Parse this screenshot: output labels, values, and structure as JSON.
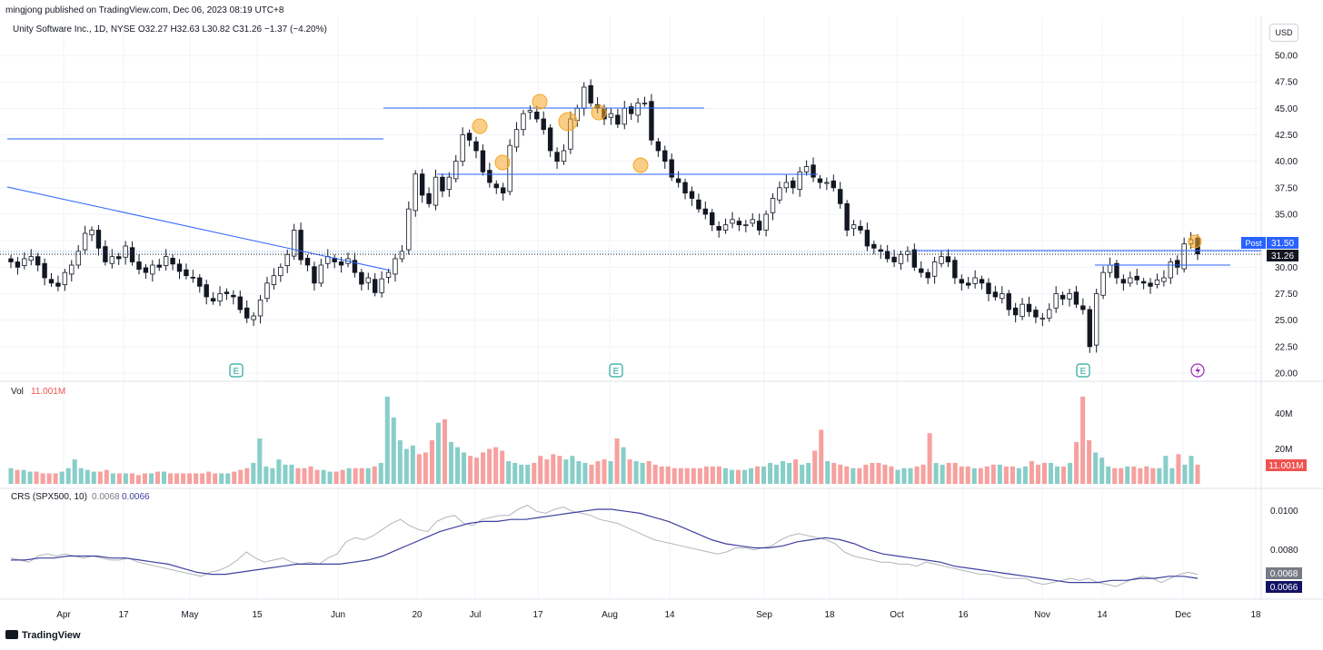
{
  "header": {
    "publisher_line": "mingjong published on TradingView.com, Dec 06, 2023 08:19 UTC+8",
    "symbol_line": "Unity Software Inc., 1D, NYSE",
    "ohlc": {
      "o": "O32.27",
      "h": "H32.63",
      "l": "L30.82",
      "c": "C31.26",
      "chg": "−1.37 (−4.20%)"
    },
    "currency_button": "USD"
  },
  "footer": {
    "brand": "TradingView"
  },
  "colors": {
    "up": "#26a69a",
    "down": "#ef5350",
    "line": "#2962ff",
    "crs": "#3f3f9e",
    "crs_raw": "#b2b5be",
    "highlight": "#f5a623"
  },
  "chart_data": [
    {
      "type": "candlestick",
      "panel": "price",
      "x_tick_labels": [
        "Apr",
        "17",
        "May",
        "15",
        "Jun",
        "20",
        "Jul",
        "17",
        "Aug",
        "14",
        "Sep",
        "18",
        "Oct",
        "16",
        "Nov",
        "14",
        "Dec",
        "18"
      ],
      "y_tick_labels": [
        "50.00",
        "47.50",
        "45.00",
        "42.50",
        "40.00",
        "37.50",
        "35.00",
        "32.50",
        "30.00",
        "27.50",
        "25.00",
        "22.50",
        "20.00"
      ],
      "ylim": [
        20,
        52
      ],
      "last_close": 31.26,
      "post_label": "Post",
      "post_value": "31.50",
      "last_value_label": "31.26",
      "earnings_markers": [
        "E",
        "E",
        "E"
      ],
      "closes": [
        30.5,
        30.0,
        30.8,
        31.0,
        30.2,
        29.0,
        28.5,
        28.2,
        29.5,
        30.2,
        31.5,
        33.2,
        33.5,
        31.8,
        30.5,
        31.0,
        30.8,
        32.0,
        30.5,
        29.8,
        29.5,
        30.2,
        30.0,
        31.0,
        30.3,
        29.6,
        29.2,
        29.0,
        28.2,
        27.2,
        26.8,
        27.5,
        27.5,
        27.2,
        26.0,
        25.2,
        25.4,
        26.9,
        28.5,
        29.2,
        30.0,
        31.2,
        33.5,
        30.7,
        30.2,
        28.5,
        30.2,
        31.0,
        30.5,
        30.2,
        30.8,
        29.5,
        28.4,
        29.0,
        27.6,
        28.9,
        29.5,
        30.8,
        31.5,
        35.5,
        38.8,
        36.8,
        36.0,
        38.5,
        37.2,
        38.5,
        40.0,
        42.5,
        42.0,
        41.0,
        39.0,
        38.0,
        37.5,
        37.0,
        41.5,
        43.0,
        44.5,
        44.8,
        44.0,
        43.0,
        41.0,
        40.0,
        41.0,
        44.0,
        45.0,
        47.0,
        45.5,
        45.0,
        44.0,
        44.5,
        43.5,
        45.0,
        44.5,
        45.5,
        45.5,
        42.0,
        41.0,
        40.0,
        38.5,
        38.0,
        37.0,
        36.5,
        35.5,
        35.0,
        34.0,
        33.5,
        34.0,
        34.5,
        34.0,
        34.0,
        34.5,
        33.5,
        35.0,
        36.5,
        37.5,
        38.0,
        37.5,
        39.0,
        39.5,
        38.5,
        38.0,
        38.0,
        37.5,
        36.0,
        33.5,
        34.0,
        33.5,
        32.0,
        31.8,
        31.5,
        30.8,
        30.5,
        31.2,
        31.5,
        30.0,
        29.5,
        29.0,
        30.5,
        31.0,
        30.5,
        29.0,
        28.5,
        28.3,
        29.0,
        28.5,
        27.5,
        27.2,
        27.5,
        26.0,
        25.5,
        26.5,
        25.8,
        25.3,
        25.2,
        26.0,
        27.5,
        27.0,
        27.5,
        26.5,
        26.0,
        22.5,
        27.5,
        29.5,
        30.2,
        29.0,
        28.5,
        29.0,
        28.8,
        28.5,
        28.2,
        28.8,
        29.0,
        30.5,
        30.0,
        32.2,
        32.6,
        31.26
      ]
    },
    {
      "type": "bar",
      "panel": "volume",
      "title": "Vol",
      "value_label": "11.001M",
      "y_tick_labels": [
        "40M",
        "20M"
      ],
      "ylim": [
        0,
        52
      ],
      "values": [
        9,
        8,
        8,
        7,
        7,
        6,
        6,
        6,
        7,
        9,
        14,
        9,
        8,
        7,
        7,
        8,
        6,
        6,
        6,
        6,
        5,
        6,
        6,
        7,
        7,
        6,
        6,
        6,
        6,
        6,
        6,
        7,
        6,
        6,
        6,
        7,
        8,
        9,
        12,
        26,
        10,
        9,
        14,
        11,
        11,
        9,
        9,
        10,
        8,
        8,
        7,
        7,
        8,
        9,
        9,
        9,
        9,
        10,
        12,
        50,
        38,
        25,
        20,
        22,
        17,
        18,
        25,
        35,
        37,
        24,
        21,
        18,
        16,
        15,
        18,
        20,
        21,
        19,
        13,
        12,
        11,
        11,
        12,
        16,
        14,
        17,
        16,
        14,
        16,
        13,
        12,
        11,
        13,
        14,
        13,
        26,
        21,
        14,
        13,
        12,
        13,
        11,
        10,
        10,
        9,
        9,
        9,
        9,
        9,
        10,
        10,
        10,
        9,
        8,
        8,
        8,
        9,
        10,
        10,
        12,
        11,
        13,
        12,
        14,
        11,
        12,
        19,
        31,
        13,
        12,
        11,
        10,
        9,
        9,
        11,
        12,
        12,
        11,
        10,
        8,
        9,
        9,
        10,
        11,
        29,
        12,
        11,
        12,
        12,
        10,
        10,
        9,
        9,
        10,
        11,
        11,
        10,
        10,
        9,
        10,
        13,
        11,
        12,
        12,
        10,
        10,
        12,
        24,
        50,
        25,
        18,
        15,
        10,
        9,
        9,
        10,
        10,
        9,
        10,
        9,
        9,
        16,
        9,
        17,
        11,
        16,
        11
      ]
    },
    {
      "type": "line",
      "panel": "crs",
      "title": "CRS (SPX500, 10)",
      "value_labels": [
        "0.0068",
        "0.0066"
      ],
      "y_tick_labels": [
        "0.0100",
        "0.0080"
      ],
      "ylim": [
        0.0058,
        0.0104
      ],
      "series": [
        {
          "name": "0.0068",
          "values": [
            0.0076,
            0.0075,
            0.0074,
            0.0077,
            0.0078,
            0.0077,
            0.0078,
            0.0077,
            0.0076,
            0.0077,
            0.0076,
            0.0075,
            0.0075,
            0.0076,
            0.0074,
            0.0073,
            0.0072,
            0.0071,
            0.007,
            0.0069,
            0.0068,
            0.0067,
            0.0069,
            0.007,
            0.0072,
            0.0075,
            0.0079,
            0.0076,
            0.0074,
            0.0075,
            0.0076,
            0.0074,
            0.0073,
            0.0074,
            0.0073,
            0.0076,
            0.0078,
            0.0084,
            0.0086,
            0.0085,
            0.0087,
            0.009,
            0.0093,
            0.0095,
            0.0092,
            0.009,
            0.0089,
            0.0094,
            0.0096,
            0.0097,
            0.0093,
            0.0092,
            0.0095,
            0.0096,
            0.0097,
            0.0097,
            0.01,
            0.0102,
            0.0099,
            0.0098,
            0.01,
            0.0101,
            0.0099,
            0.0098,
            0.0097,
            0.0095,
            0.0094,
            0.0093,
            0.0091,
            0.0089,
            0.0087,
            0.0085,
            0.0084,
            0.0083,
            0.0082,
            0.0081,
            0.008,
            0.0079,
            0.0078,
            0.0079,
            0.0081,
            0.0081,
            0.008,
            0.0081,
            0.0082,
            0.0085,
            0.0087,
            0.0088,
            0.0087,
            0.0086,
            0.0085,
            0.0083,
            0.0079,
            0.0077,
            0.0076,
            0.0075,
            0.0074,
            0.0074,
            0.0073,
            0.0073,
            0.0072,
            0.0074,
            0.0073,
            0.0072,
            0.0071,
            0.007,
            0.0069,
            0.0068,
            0.0068,
            0.0067,
            0.0066,
            0.0066,
            0.0066,
            0.0064,
            0.0063,
            0.0064,
            0.0065,
            0.0066,
            0.0065,
            0.0066,
            0.0064,
            0.0063,
            0.0062,
            0.0064,
            0.0066,
            0.0067,
            0.0066,
            0.0064,
            0.0066,
            0.0068,
            0.0069,
            0.0068
          ]
        },
        {
          "name": "0.0066",
          "values": [
            0.0075,
            0.0075,
            0.0076,
            0.0076,
            0.0077,
            0.0077,
            0.0077,
            0.0076,
            0.0076,
            0.0075,
            0.0074,
            0.0073,
            0.0071,
            0.0069,
            0.0068,
            0.0068,
            0.0069,
            0.007,
            0.0071,
            0.0072,
            0.0073,
            0.0073,
            0.0073,
            0.0073,
            0.0074,
            0.0075,
            0.0077,
            0.008,
            0.0083,
            0.0086,
            0.0089,
            0.0091,
            0.0093,
            0.0094,
            0.0094,
            0.0095,
            0.0095,
            0.0096,
            0.0097,
            0.0098,
            0.0099,
            0.01,
            0.01,
            0.0099,
            0.0098,
            0.0096,
            0.0094,
            0.0091,
            0.0088,
            0.0085,
            0.0083,
            0.0082,
            0.0081,
            0.0081,
            0.0082,
            0.0084,
            0.0085,
            0.0086,
            0.0085,
            0.0083,
            0.008,
            0.0078,
            0.0077,
            0.0076,
            0.0075,
            0.0074,
            0.0072,
            0.0071,
            0.007,
            0.0069,
            0.0068,
            0.0067,
            0.0066,
            0.0065,
            0.0064,
            0.0064,
            0.0064,
            0.0065,
            0.0065,
            0.0066,
            0.0066,
            0.0067,
            0.0067,
            0.0066
          ]
        }
      ]
    }
  ]
}
